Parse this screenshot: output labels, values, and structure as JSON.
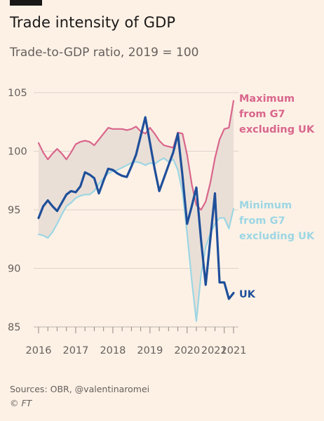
{
  "header": {
    "title": "Trade intensity of GDP",
    "subtitle": "Trade-to-GDP ratio, 2019 = 100"
  },
  "footer": {
    "sources": "Sources: OBR, @valentinaromei",
    "credit": "© FT"
  },
  "colors": {
    "background": "#fdf1e6",
    "max_series": "#d9668c",
    "min_series": "#9dd6e3",
    "uk_series": "#1f4f9a",
    "band_fill": "#eadfd6",
    "grid": "#ddd3ca"
  },
  "chart_data": {
    "type": "line",
    "title": "Trade intensity of GDP",
    "subtitle": "Trade-to-GDP ratio, 2019 = 100",
    "xlabel": "",
    "ylabel": "",
    "ylim": [
      85,
      105
    ],
    "yticks": [
      85,
      90,
      95,
      100,
      105
    ],
    "xlim": [
      2016.0,
      2021.25
    ],
    "xtick_labels": [
      {
        "x": 2016.0,
        "label": "2016"
      },
      {
        "x": 2017.0,
        "label": "2017"
      },
      {
        "x": 2018.0,
        "label": "2018"
      },
      {
        "x": 2019.0,
        "label": "2019"
      },
      {
        "x": 2020.0,
        "label": "2020"
      },
      {
        "x": 2021.0,
        "label": "2021"
      },
      {
        "x": 2021.25,
        "label": "2021"
      }
    ],
    "grid": true,
    "band_between": [
      "Maximum from G7 excluding UK",
      "Minimum from G7 excluding UK"
    ],
    "x": [
      2016.0,
      2016.125,
      2016.25,
      2016.375,
      2016.5,
      2016.625,
      2016.75,
      2016.875,
      2017.0,
      2017.125,
      2017.25,
      2017.375,
      2017.5,
      2017.625,
      2017.75,
      2017.875,
      2018.0,
      2018.125,
      2018.25,
      2018.375,
      2018.5,
      2018.625,
      2018.75,
      2018.875,
      2019.0,
      2019.125,
      2019.25,
      2019.375,
      2019.5,
      2019.625,
      2019.75,
      2019.875,
      2020.0,
      2020.125,
      2020.25,
      2020.375,
      2020.5,
      2020.625,
      2020.75,
      2020.875,
      2021.0,
      2021.125,
      2021.25
    ],
    "series": [
      {
        "name": "Maximum from G7 excluding UK",
        "label_lines": [
          "Maximum",
          "from G7",
          "excluding UK"
        ],
        "values": [
          100.7,
          99.9,
          99.3,
          99.8,
          100.2,
          99.8,
          99.3,
          99.9,
          100.6,
          100.8,
          100.9,
          100.8,
          100.5,
          101.0,
          101.5,
          102.0,
          101.9,
          101.9,
          101.9,
          101.8,
          101.9,
          102.1,
          101.7,
          101.5,
          102.0,
          101.5,
          100.9,
          100.5,
          100.4,
          100.3,
          101.6,
          101.5,
          99.7,
          97.2,
          95.4,
          95.0,
          95.7,
          97.3,
          99.4,
          101.0,
          101.9,
          102.0,
          104.3
        ]
      },
      {
        "name": "Minimum from G7 excluding UK",
        "label_lines": [
          "Minimum",
          "from G7",
          "excluding UK"
        ],
        "values": [
          92.9,
          92.8,
          92.6,
          93.1,
          93.8,
          94.6,
          95.3,
          95.6,
          96.0,
          96.2,
          96.3,
          96.3,
          96.6,
          97.2,
          97.7,
          98.1,
          98.3,
          98.4,
          98.6,
          98.8,
          99.0,
          99.1,
          99.0,
          98.8,
          99.0,
          98.9,
          99.2,
          99.4,
          99.1,
          99.3,
          98.4,
          96.5,
          93.0,
          89.0,
          85.5,
          89.5,
          91.8,
          93.0,
          93.8,
          94.3,
          94.3,
          93.4,
          95.1
        ]
      },
      {
        "name": "UK",
        "label_lines": [
          "UK"
        ],
        "values": [
          94.3,
          95.3,
          95.8,
          95.3,
          94.9,
          95.6,
          96.3,
          96.6,
          96.5,
          97.0,
          98.2,
          98.0,
          97.7,
          96.4,
          97.5,
          98.5,
          98.4,
          98.1,
          97.9,
          97.8,
          98.7,
          99.7,
          101.3,
          102.9,
          100.7,
          98.5,
          96.6,
          97.7,
          98.8,
          99.9,
          101.5,
          97.9,
          93.8,
          95.3,
          96.9,
          92.4,
          88.6,
          92.5,
          96.4,
          88.8,
          88.8,
          87.4,
          87.9
        ]
      }
    ]
  }
}
